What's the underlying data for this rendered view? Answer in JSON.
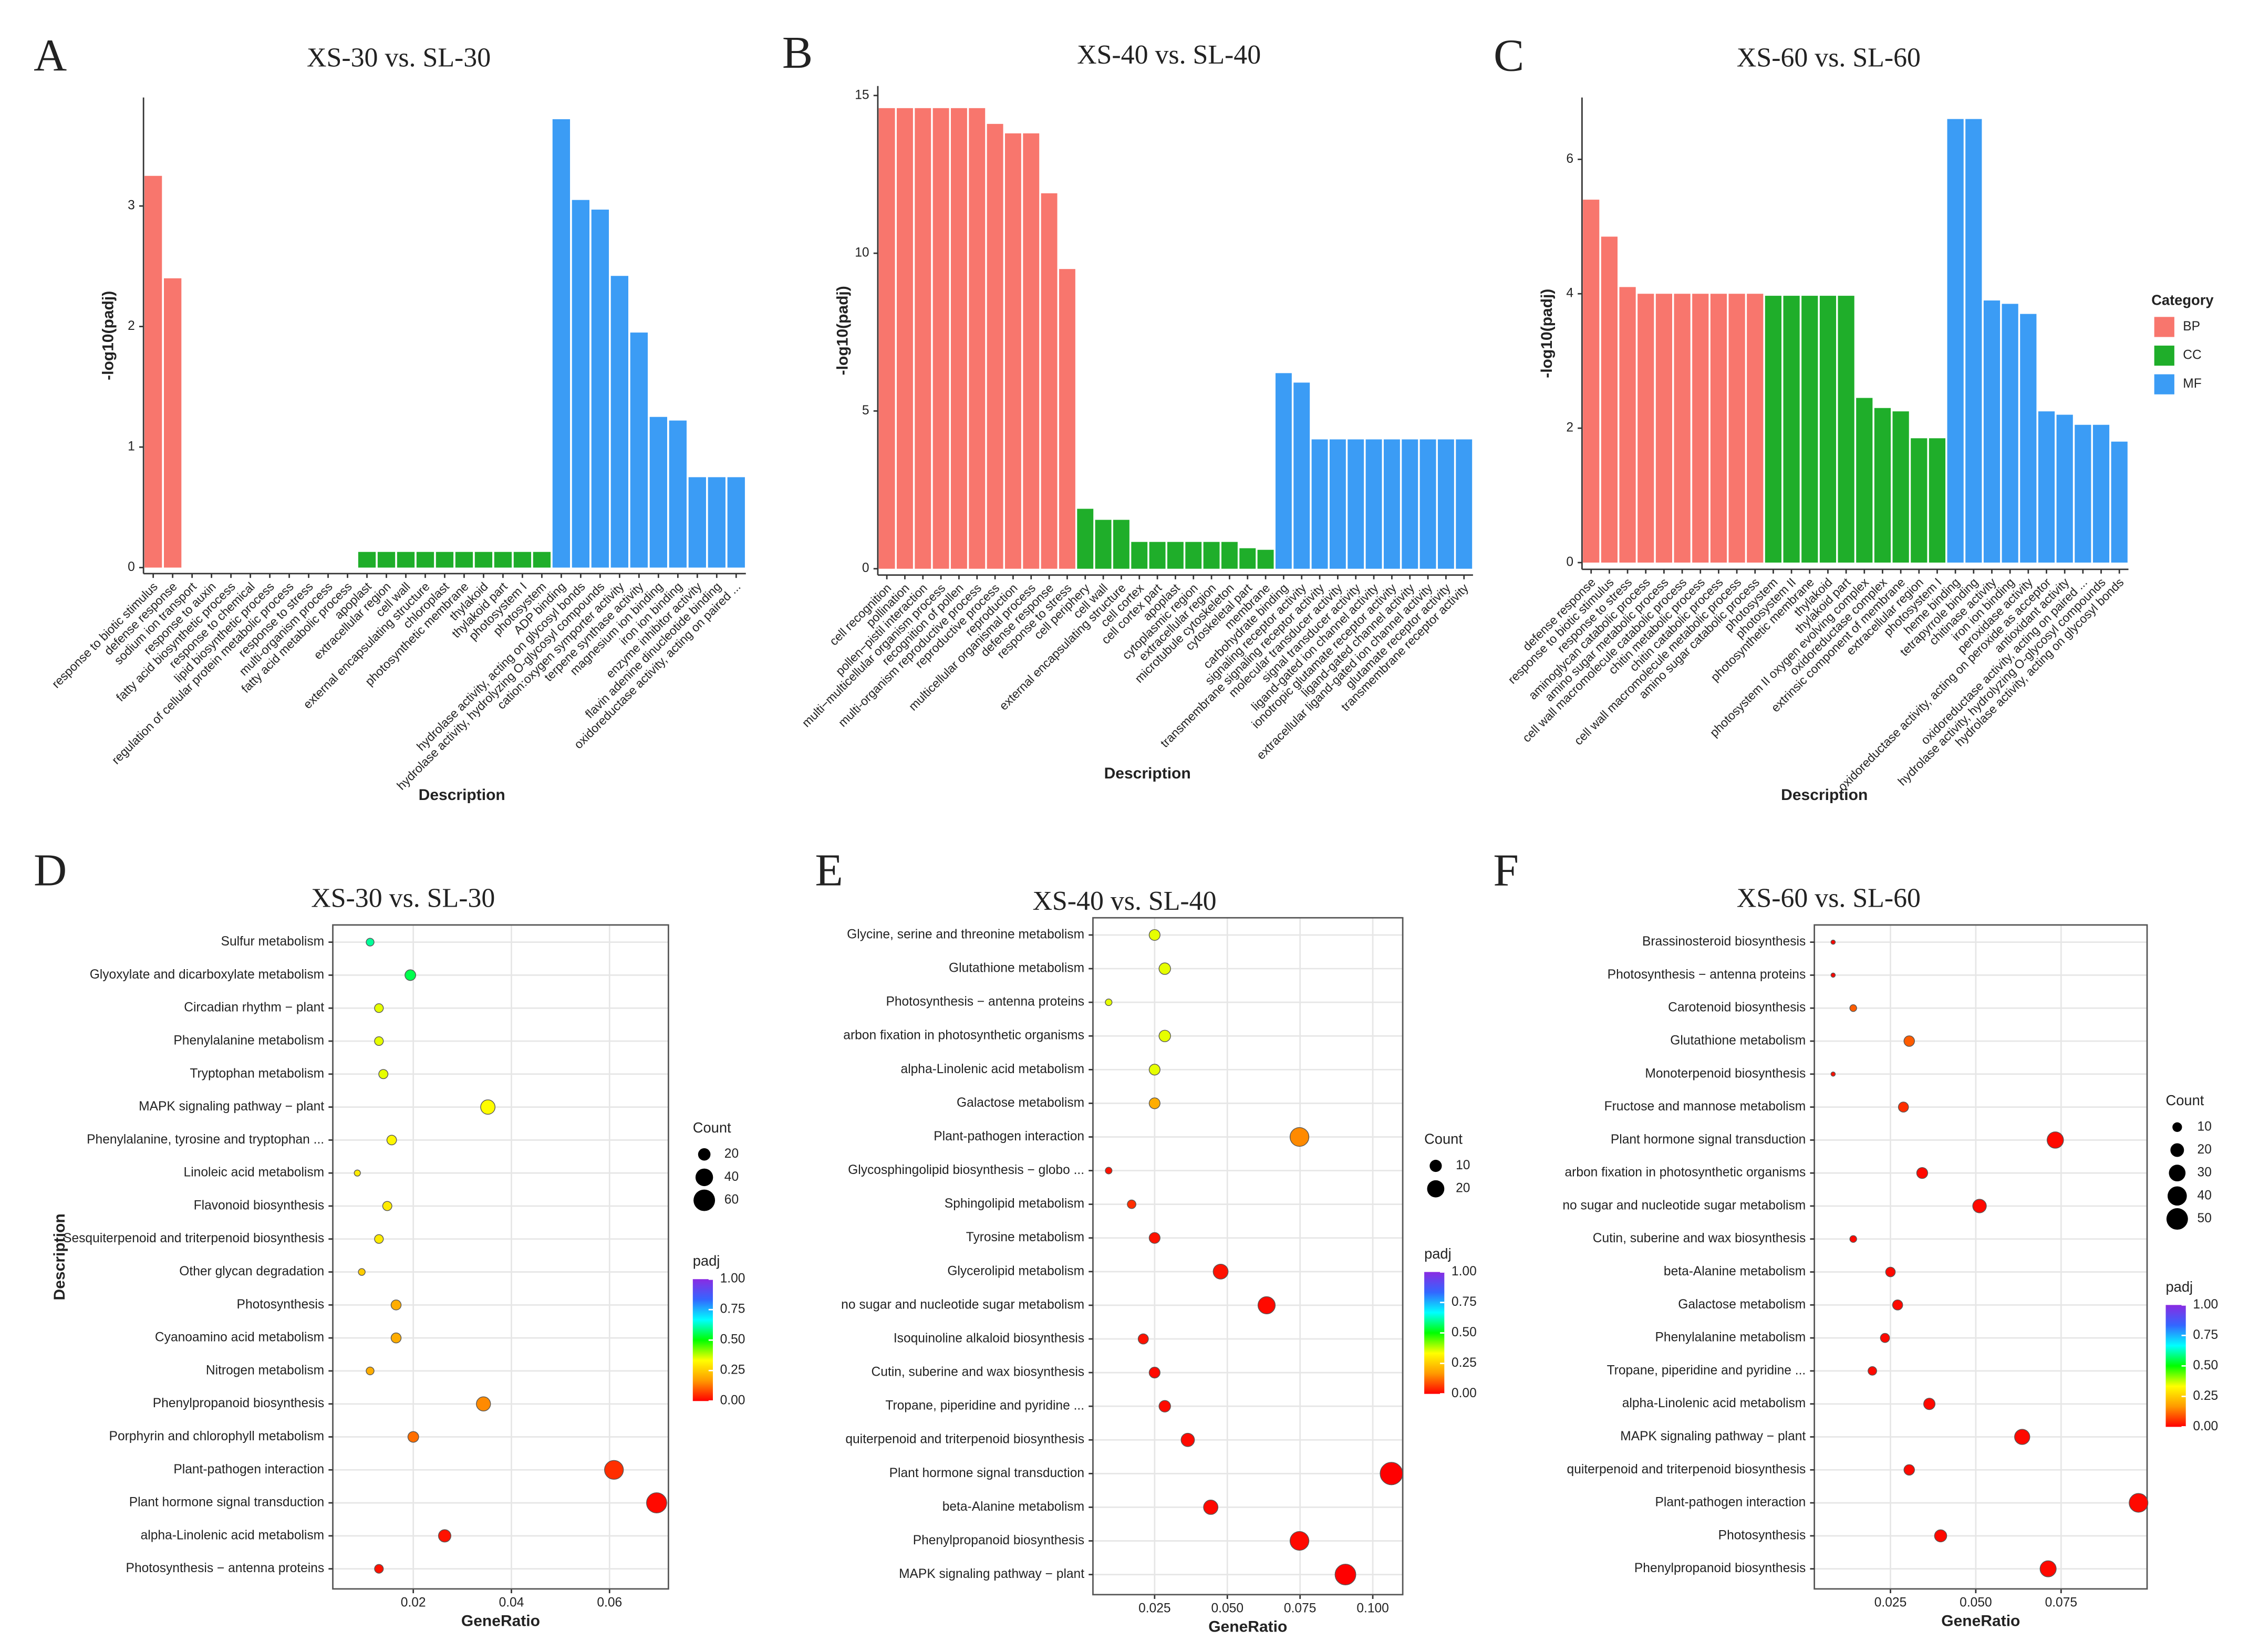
{
  "chart_data": [
    {
      "type": "bar",
      "panel": "A",
      "title": "XS-30 vs. SL-30",
      "ylabel": "-log10(padj)",
      "xlabel": "Description",
      "categories": [
        "response to biotic stimulus",
        "defense response",
        "sodium ion transport",
        "response to auxin",
        "fatty acid biosynthetic process",
        "response to chemical",
        "lipid biosynthetic process",
        "regulation of cellular protein metabolic process",
        "response to stress",
        "multi-organism process",
        "fatty acid metabolic process",
        "apoplast",
        "extracellular region",
        "cell wall",
        "external encapsulating structure",
        "chloroplast",
        "photosynthetic membrane",
        "thylakoid",
        "thylakoid part",
        "photosystem I",
        "photosystem",
        "ADP binding",
        "hydrolase activity, acting on glycosyl bonds",
        "hydrolase activity, hydrolyzing O-glycosyl compounds",
        "cation:oxygen symporter activity",
        "terpene synthase activity",
        "magnesium ion binding",
        "iron ion binding",
        "enzyme inhibitor activity",
        "flavin adenine dinucleotide binding",
        "oxidoreductase activity, acting on paired ..."
      ],
      "series": [
        {
          "color": "#f8766d",
          "values": [
            3.25,
            2.4,
            0,
            0,
            0,
            0,
            0,
            0,
            0,
            0,
            0,
            null,
            null,
            null,
            null,
            null,
            null,
            null,
            null,
            null,
            null,
            null,
            null,
            null,
            null,
            null,
            null,
            null,
            null,
            null,
            null
          ]
        },
        {
          "color": "#1fae2a",
          "values": [
            null,
            null,
            null,
            null,
            null,
            null,
            null,
            null,
            null,
            null,
            null,
            0.13,
            0.13,
            0.13,
            0.13,
            0.13,
            0.13,
            0.13,
            0.13,
            0.13,
            0.13,
            null,
            null,
            null,
            null,
            null,
            null,
            null,
            null,
            null,
            null
          ]
        },
        {
          "color": "#3b9cf5",
          "values": [
            null,
            null,
            null,
            null,
            null,
            null,
            null,
            null,
            null,
            null,
            null,
            null,
            null,
            null,
            null,
            null,
            null,
            null,
            null,
            null,
            null,
            3.72,
            3.05,
            2.97,
            2.42,
            1.95,
            1.25,
            1.22,
            0.75,
            0.75,
            0.75
          ]
        }
      ],
      "ylim": [
        -0.05,
        3.9
      ],
      "yticks": [
        0,
        1,
        2,
        3
      ]
    },
    {
      "type": "bar",
      "panel": "B",
      "title": "XS-40 vs. SL-40",
      "ylabel": "-log10(padj)",
      "xlabel": "Description",
      "categories": [
        "cell recognition",
        "pollination",
        "pollen−pistil interaction",
        "multi−multicellular organism process",
        "recognition of pollen",
        "multi-organism reproductive process",
        "reproductive process",
        "reproduction",
        "multicellular organismal process",
        "defense response",
        "response to stress",
        "cell periphery",
        "cell wall",
        "external encapsulating structure",
        "cell cortex",
        "cell cortex part",
        "apoplast",
        "cytoplasmic region",
        "extracellular region",
        "microtubule cytoskeleton",
        "cytoskeletal part",
        "membrane",
        "carbohydrate binding",
        "signaling receptor activity",
        "transmembrane signaling receptor activity",
        "molecular transducer activity",
        "signal transducer activity",
        "ligand-gated ion channel activity",
        "ionotropic glutamate receptor activity",
        "ligand-gated channel activity",
        "extracellular ligand-gated ion channel activity",
        "glutamate receptor activity",
        "transmembrane receptor activity"
      ],
      "series": [
        {
          "color": "#f8766d",
          "values": [
            14.6,
            14.6,
            14.6,
            14.6,
            14.6,
            14.6,
            14.1,
            13.8,
            13.8,
            11.9,
            9.5,
            null,
            null,
            null,
            null,
            null,
            null,
            null,
            null,
            null,
            null,
            null,
            null,
            null,
            null,
            null,
            null,
            null,
            null,
            null,
            null,
            null,
            null
          ]
        },
        {
          "color": "#1fae2a",
          "values": [
            null,
            null,
            null,
            null,
            null,
            null,
            null,
            null,
            null,
            null,
            null,
            1.9,
            1.55,
            1.55,
            0.85,
            0.85,
            0.85,
            0.85,
            0.85,
            0.85,
            0.65,
            0.6,
            null,
            null,
            null,
            null,
            null,
            null,
            null,
            null,
            null,
            null,
            null
          ]
        },
        {
          "color": "#3b9cf5",
          "values": [
            null,
            null,
            null,
            null,
            null,
            null,
            null,
            null,
            null,
            null,
            null,
            null,
            null,
            null,
            null,
            null,
            null,
            null,
            null,
            null,
            null,
            null,
            6.2,
            5.9,
            4.1,
            4.1,
            4.1,
            4.1,
            4.1,
            4.1,
            4.1,
            4.1,
            4.1
          ]
        }
      ],
      "ylim": [
        -0.2,
        15.3
      ],
      "yticks": [
        0,
        5,
        10,
        15
      ]
    },
    {
      "type": "bar",
      "panel": "C",
      "title": "XS-60 vs. SL-60",
      "ylabel": "-log10(padj)",
      "xlabel": "Description",
      "legend_title": "Category",
      "legend": "right",
      "categories": [
        "defense response",
        "response to biotic stimulus",
        "response to stress",
        "aminoglycan catabolic process",
        "amino sugar metabolic process",
        "cell wall macromolecule catabolic process",
        "chitin metabolic process",
        "chitin catabolic process",
        "cell wall macromolecule metabolic process",
        "amino sugar catabolic process",
        "photosystem",
        "photosystem II",
        "photosynthetic membrane",
        "thylakoid",
        "thylakoid part",
        "photosystem II oxygen evolving complex",
        "oxidoreductase complex",
        "extrinsic component of membrane",
        "extracellular region",
        "photosystem I",
        "heme binding",
        "tetrapyrrole binding",
        "chitinase activity",
        "iron ion binding",
        "peroxidase activity",
        "oxidoreductase activity, acting on peroxide as acceptor",
        "antioxidant activity",
        "oxidoreductase activity, acting on paired ...",
        "hydrolase activity, hydrolyzing O-glycosyl compounds",
        "hydrolase activity, acting on glycosyl bonds"
      ],
      "series": [
        {
          "name": "BP",
          "color": "#f8766d",
          "values": [
            5.4,
            4.85,
            4.1,
            4,
            4,
            4,
            4,
            4,
            4,
            4,
            null,
            null,
            null,
            null,
            null,
            null,
            null,
            null,
            null,
            null,
            null,
            null,
            null,
            null,
            null,
            null,
            null,
            null,
            null,
            null
          ]
        },
        {
          "name": "CC",
          "color": "#1fae2a",
          "values": [
            null,
            null,
            null,
            null,
            null,
            null,
            null,
            null,
            null,
            null,
            3.97,
            3.97,
            3.97,
            3.97,
            3.97,
            2.45,
            2.3,
            2.25,
            1.85,
            1.85,
            null,
            null,
            null,
            null,
            null,
            null,
            null,
            null,
            null,
            null
          ]
        },
        {
          "name": "MF",
          "color": "#3b9cf5",
          "values": [
            null,
            null,
            null,
            null,
            null,
            null,
            null,
            null,
            null,
            null,
            null,
            null,
            null,
            null,
            null,
            null,
            null,
            null,
            null,
            null,
            6.6,
            6.6,
            3.9,
            3.85,
            3.7,
            2.25,
            2.2,
            2.05,
            2.05,
            1.8
          ]
        }
      ],
      "ylim": [
        -0.1,
        6.92
      ],
      "yticks": [
        0,
        2,
        4,
        6
      ]
    },
    {
      "type": "dot",
      "panel": "D",
      "title": "XS-30 vs. SL-30",
      "ylabel": "Description",
      "xlabel": "GeneRatio",
      "categories": [
        "Sulfur metabolism",
        "Glyoxylate and dicarboxylate metabolism",
        "Circadian rhythm − plant",
        "Phenylalanine metabolism",
        "Tryptophan metabolism",
        "MAPK signaling pathway − plant",
        "Phenylalanine, tyrosine and tryptophan ...",
        "Linoleic acid metabolism",
        "Flavonoid biosynthesis",
        "Sesquiterpenoid and triterpenoid biosynthesis",
        "Other glycan degradation",
        "Photosynthesis",
        "Cyanoamino acid metabolism",
        "Nitrogen metabolism",
        "Phenylpropanoid biosynthesis",
        "Porphyrin and chlorophyll metabolism",
        "Plant-pathogen interaction",
        "Plant hormone signal transduction",
        "alpha-Linolenic acid metabolism",
        "Photosynthesis − antenna proteins"
      ],
      "gene_ratio": [
        0.0112,
        0.0194,
        0.013,
        0.013,
        0.0139,
        0.0352,
        0.0156,
        0.0086,
        0.0147,
        0.013,
        0.0095,
        0.0165,
        0.0165,
        0.0112,
        0.0343,
        0.02,
        0.0609,
        0.0696,
        0.0264,
        0.013
      ],
      "count": [
        8,
        15,
        10,
        10,
        11,
        27,
        12,
        5,
        11,
        10,
        6,
        13,
        13,
        8,
        26,
        15,
        46,
        53,
        20,
        10
      ],
      "padj": [
        0.6,
        0.55,
        0.35,
        0.35,
        0.35,
        0.33,
        0.32,
        0.3,
        0.3,
        0.3,
        0.25,
        0.2,
        0.2,
        0.2,
        0.15,
        0.12,
        0.05,
        0.01,
        0.02,
        0.02
      ],
      "xlim": [
        0.0036,
        0.072
      ],
      "xticks": [
        0.02,
        0.04,
        0.06
      ],
      "grid": true,
      "size_legend_title": "Count",
      "size_ticks": [
        20,
        40,
        60
      ],
      "color_legend_title": "padj",
      "color_ticks": [
        {
          "value": 0,
          "label": "0.00"
        },
        {
          "value": 0.25,
          "label": "0.25"
        },
        {
          "value": 0.5,
          "label": "0.50"
        },
        {
          "value": 0.75,
          "label": "0.75"
        },
        {
          "value": 1,
          "label": "1.00"
        }
      ],
      "color_scale": [
        "#ff0000",
        "#ff9900",
        "#ffff00",
        "#00ff00",
        "#00ffff",
        "#3366ff",
        "#8a2be2"
      ]
    },
    {
      "type": "dot",
      "panel": "E",
      "title": "XS-40 vs. SL-40",
      "xlabel": "GeneRatio",
      "categories": [
        "Glycine, serine and threonine metabolism",
        "Glutathione metabolism",
        "Photosynthesis − antenna proteins",
        "arbon fixation in photosynthetic organisms",
        "alpha-Linolenic acid metabolism",
        "Galactose metabolism",
        "Plant-pathogen interaction",
        "Glycosphingolipid biosynthesis − globo ...",
        "Sphingolipid metabolism",
        "Tyrosine metabolism",
        "Glycerolipid metabolism",
        "no sugar and nucleotide sugar metabolism",
        "Isoquinoline alkaloid biosynthesis",
        "Cutin, suberine and wax biosynthesis",
        "Tropane, piperidine and pyridine ...",
        "quiterpenoid and triterpenoid biosynthesis",
        "Plant hormone signal transduction",
        "beta-Alanine metabolism",
        "Phenylpropanoid biosynthesis",
        "MAPK signaling pathway − plant"
      ],
      "gene_ratio": [
        0.025,
        0.0285,
        0.0092,
        0.0285,
        0.025,
        0.025,
        0.0748,
        0.0092,
        0.0171,
        0.025,
        0.0477,
        0.0635,
        0.0211,
        0.025,
        0.0285,
        0.0364,
        0.1064,
        0.0443,
        0.0748,
        0.0906
      ],
      "count": [
        8,
        9,
        3,
        9,
        8,
        8,
        24,
        3,
        5,
        8,
        15,
        20,
        7,
        8,
        9,
        12,
        34,
        14,
        24,
        29
      ],
      "padj": [
        0.35,
        0.35,
        0.35,
        0.35,
        0.35,
        0.2,
        0.15,
        0.02,
        0.05,
        0.02,
        0.02,
        0.01,
        0.02,
        0.01,
        0.01,
        0.01,
        0,
        0.01,
        0.01,
        0
      ],
      "xlim": [
        0.0038,
        0.1103
      ],
      "xticks": [
        0.025,
        {
          "value": 0.05,
          "label": "0.050"
        },
        0.075,
        {
          "value": 0.1,
          "label": "0.100"
        }
      ],
      "grid": true,
      "size_legend_title": "Count",
      "size_ticks": [
        10,
        20
      ],
      "color_legend_title": "padj",
      "color_ticks": [
        {
          "value": 0,
          "label": "0.00"
        },
        {
          "value": 0.25,
          "label": "0.25"
        },
        {
          "value": 0.5,
          "label": "0.50"
        },
        {
          "value": 0.75,
          "label": "0.75"
        },
        {
          "value": 1,
          "label": "1.00"
        }
      ],
      "color_scale": [
        "#ff0000",
        "#ff9900",
        "#ffff00",
        "#00ff00",
        "#00ffff",
        "#3366ff",
        "#8a2be2"
      ]
    },
    {
      "type": "dot",
      "panel": "F",
      "title": "XS-60 vs. SL-60",
      "xlabel": "GeneRatio",
      "categories": [
        "Brassinosteroid biosynthesis",
        "Photosynthesis − antenna proteins",
        "Carotenoid biosynthesis",
        "Glutathione metabolism",
        "Monoterpenoid biosynthesis",
        "Fructose and mannose metabolism",
        "Plant hormone signal transduction",
        "arbon fixation in photosynthetic organisms",
        "no sugar and nucleotide sugar metabolism",
        "Cutin, suberine and wax biosynthesis",
        "beta-Alanine metabolism",
        "Galactose metabolism",
        "Phenylalanine metabolism",
        "Tropane, piperidine and pyridine ...",
        "alpha-Linolenic acid metabolism",
        "MAPK signaling pathway − plant",
        "quiterpenoid and triterpenoid biosynthesis",
        "Plant-pathogen interaction",
        "Photosynthesis",
        "Phenylpropanoid biosynthesis"
      ],
      "gene_ratio": [
        0.0082,
        0.0082,
        0.0141,
        0.0305,
        0.0082,
        0.0288,
        0.0733,
        0.0343,
        0.0511,
        0.0141,
        0.025,
        0.0271,
        0.0234,
        0.0197,
        0.0364,
        0.0636,
        0.0305,
        0.0977,
        0.0397,
        0.0712
      ],
      "count": [
        2,
        2,
        5,
        12,
        2,
        11,
        29,
        13,
        20,
        5,
        10,
        11,
        9,
        8,
        14,
        25,
        12,
        38,
        16,
        28
      ],
      "padj": [
        0.01,
        0.01,
        0.1,
        0.1,
        0.02,
        0.05,
        0.01,
        0.01,
        0.01,
        0.01,
        0.01,
        0.01,
        0.01,
        0.01,
        0.01,
        0.01,
        0.01,
        0.01,
        0.01,
        0.01
      ],
      "xlim": [
        0.0027,
        0.1002
      ],
      "xticks": [
        0.025,
        {
          "value": 0.05,
          "label": "0.050"
        },
        0.075
      ],
      "grid": true,
      "size_legend_title": "Count",
      "size_ticks": [
        10,
        20,
        30,
        40,
        50
      ],
      "color_legend_title": "padj",
      "color_ticks": [
        {
          "value": 0,
          "label": "0.00"
        },
        {
          "value": 0.25,
          "label": "0.25"
        },
        {
          "value": 0.5,
          "label": "0.50"
        },
        {
          "value": 0.75,
          "label": "0.75"
        },
        {
          "value": 1,
          "label": "1.00"
        }
      ],
      "color_scale": [
        "#ff0000",
        "#ff9900",
        "#ffff00",
        "#00ff00",
        "#00ffff",
        "#3366ff",
        "#8a2be2"
      ]
    }
  ]
}
